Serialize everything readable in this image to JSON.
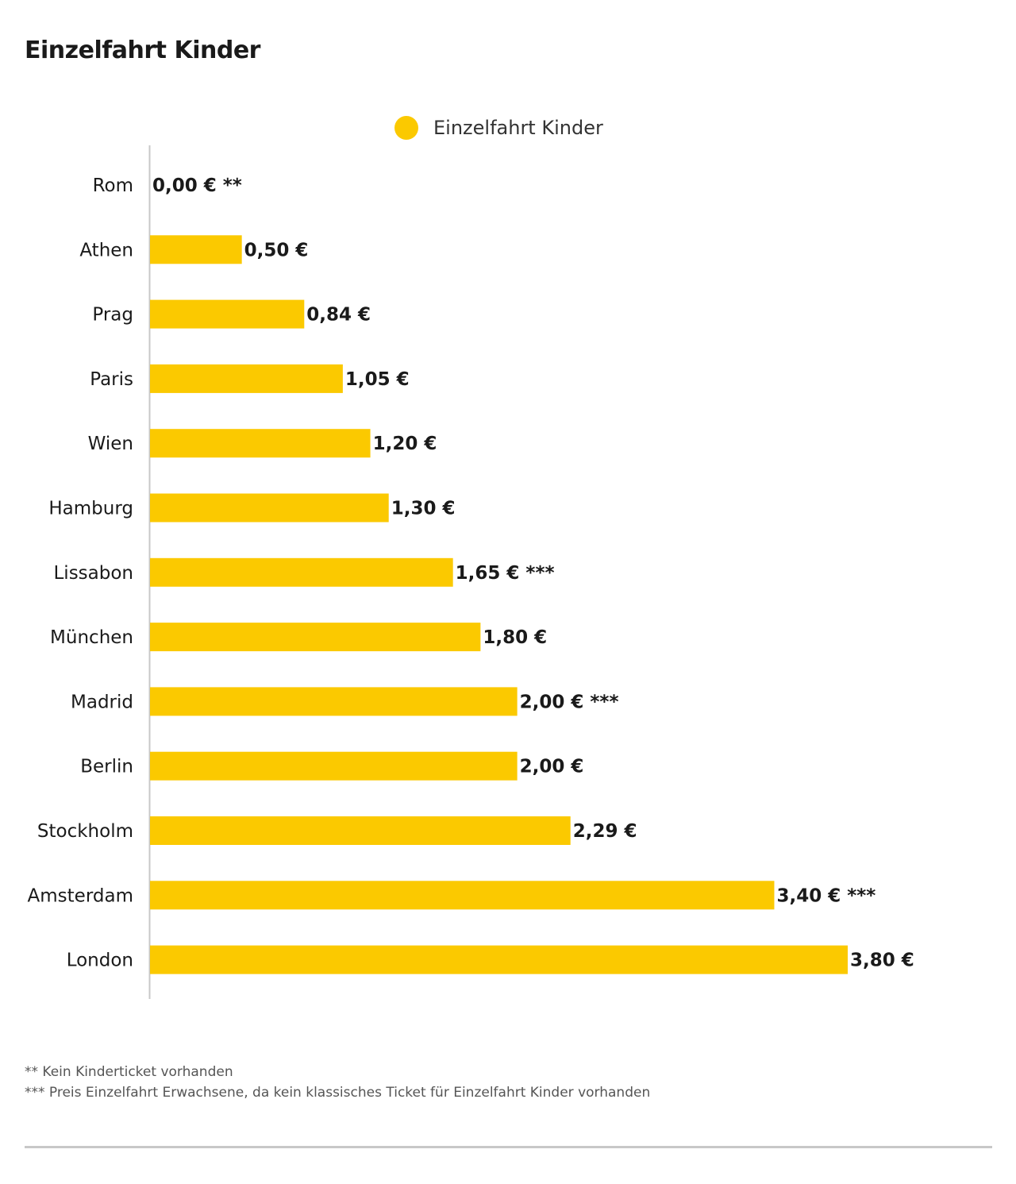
{
  "title": "Einzelfahrt Kinder",
  "colors": {
    "bar": "#fbc900",
    "axis": "#c8c8c8",
    "text": "#1a1a1a",
    "footnote": "#555555"
  },
  "chart_data": {
    "type": "bar",
    "orientation": "horizontal",
    "title": "Einzelfahrt Kinder",
    "xlabel": "",
    "ylabel": "",
    "xlim": [
      0,
      3.8
    ],
    "grid": false,
    "legend": {
      "position": "top-center",
      "entries": [
        "Einzelfahrt Kinder"
      ]
    },
    "categories": [
      "Rom",
      "Athen",
      "Prag",
      "Paris",
      "Wien",
      "Hamburg",
      "Lissabon",
      "München",
      "Madrid",
      "Berlin",
      "Stockholm",
      "Amsterdam",
      "London"
    ],
    "series": [
      {
        "name": "Einzelfahrt Kinder",
        "values": [
          0.0,
          0.5,
          0.84,
          1.05,
          1.2,
          1.3,
          1.65,
          1.8,
          2.0,
          2.0,
          2.29,
          3.4,
          3.8
        ],
        "labels": [
          "0,00 € **",
          "0,50 €",
          "0,84 €",
          "1,05 €",
          "1,20 €",
          "1,30 €",
          "1,65 € ***",
          "1,80 €",
          "2,00 € ***",
          "2,00 €",
          "2,29 €",
          "3,40 € ***",
          "3,80 €"
        ]
      }
    ]
  },
  "footnotes": [
    "** Kein Kinderticket vorhanden",
    "*** Preis Einzelfahrt Erwachsene, da kein klassisches Ticket für Einzelfahrt Kinder vorhanden"
  ]
}
